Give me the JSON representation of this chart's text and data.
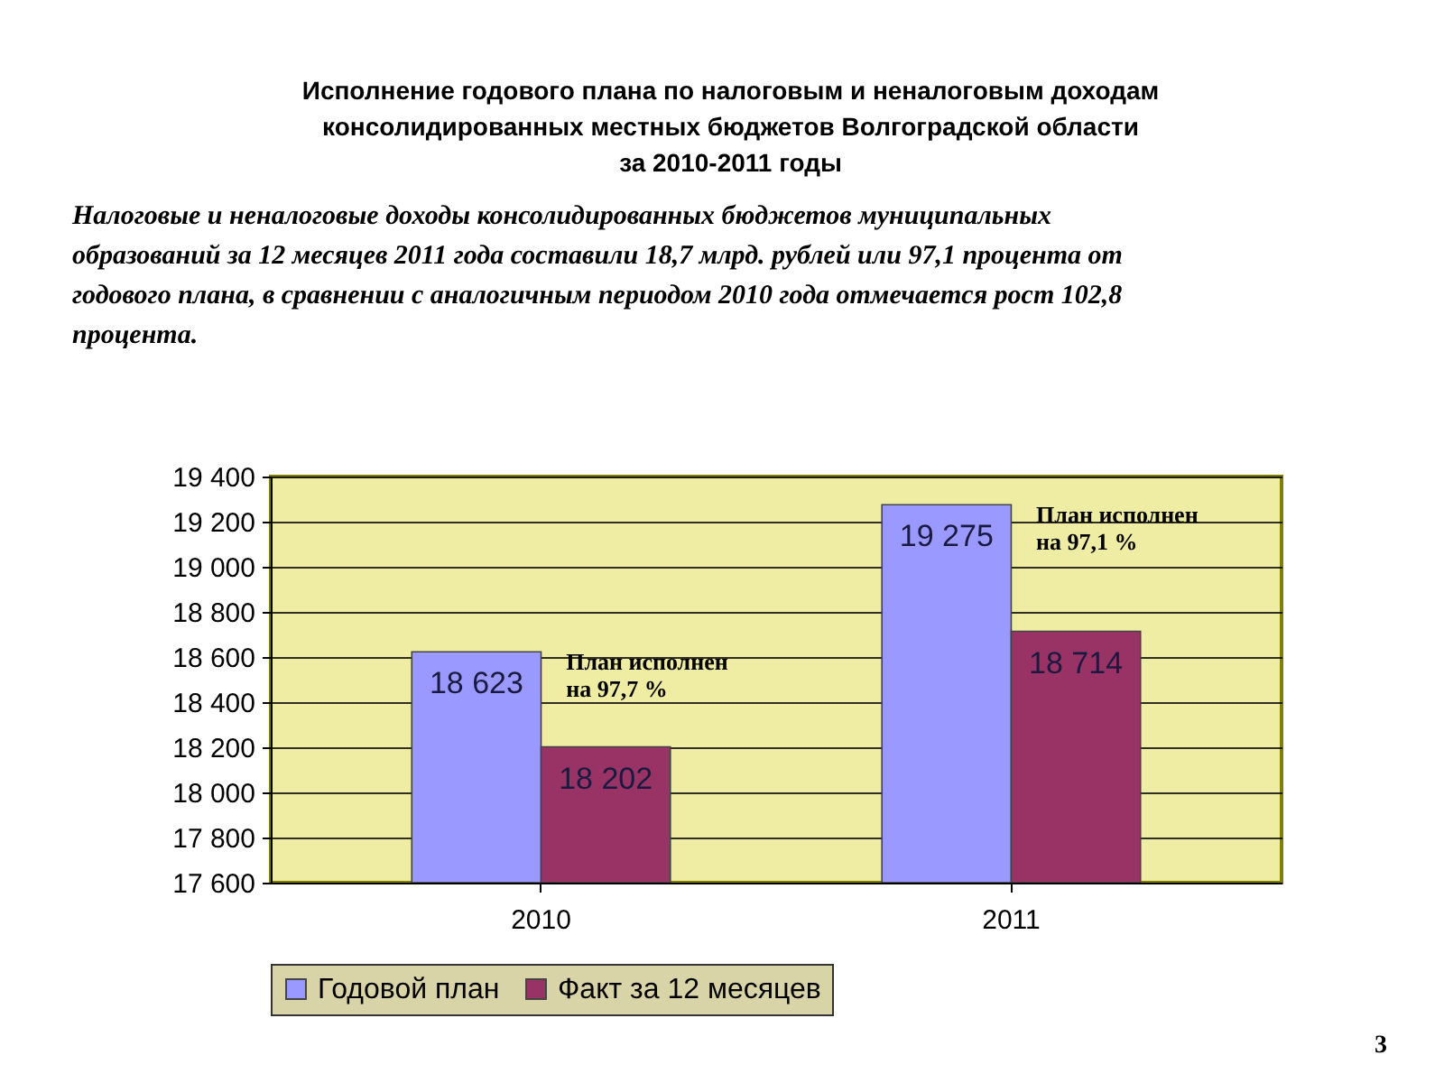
{
  "chart_data": {
    "type": "bar",
    "title": "Исполнение годового плана по налоговым и неналоговым доходам\nконсолидированных местных бюджетов Волгоградской области\nза 2010-2011 годы",
    "subtitle": "Налоговые и неналоговые доходы консолидированных бюджетов муниципальных\nобразований за 12 месяцев 2011 года составили 18,7 млрд. рублей или 97,1 процента от\nгодового плана, в сравнении с аналогичным периодом 2010 года отмечается рост 102,8\nпроцента.",
    "categories": [
      "2010",
      "2011"
    ],
    "series": [
      {
        "name": "Годовой план",
        "color": "#9999ff",
        "values": [
          18623,
          19275
        ],
        "value_labels": [
          "18 623",
          "19 275"
        ]
      },
      {
        "name": "Факт за 12 месяцев",
        "color": "#993366",
        "values": [
          18202,
          18714
        ],
        "value_labels": [
          "18 202",
          "18 714"
        ]
      }
    ],
    "ylim": [
      17600,
      19400
    ],
    "yticks": [
      {
        "value": 17600,
        "label": "17 600"
      },
      {
        "value": 17800,
        "label": "17 800"
      },
      {
        "value": 18000,
        "label": "18 000"
      },
      {
        "value": 18200,
        "label": "18 200"
      },
      {
        "value": 18400,
        "label": "18 400"
      },
      {
        "value": 18600,
        "label": "18 600"
      },
      {
        "value": 18800,
        "label": "18 800"
      },
      {
        "value": 19000,
        "label": "19 000"
      },
      {
        "value": 19200,
        "label": "19 200"
      },
      {
        "value": 19400,
        "label": "19 400"
      }
    ],
    "grid": "y",
    "legend": "bottom",
    "annotations": [
      "План исполнен\nна 97,7 %",
      "План исполнен\nна 97,1 %",
      "3"
    ]
  }
}
